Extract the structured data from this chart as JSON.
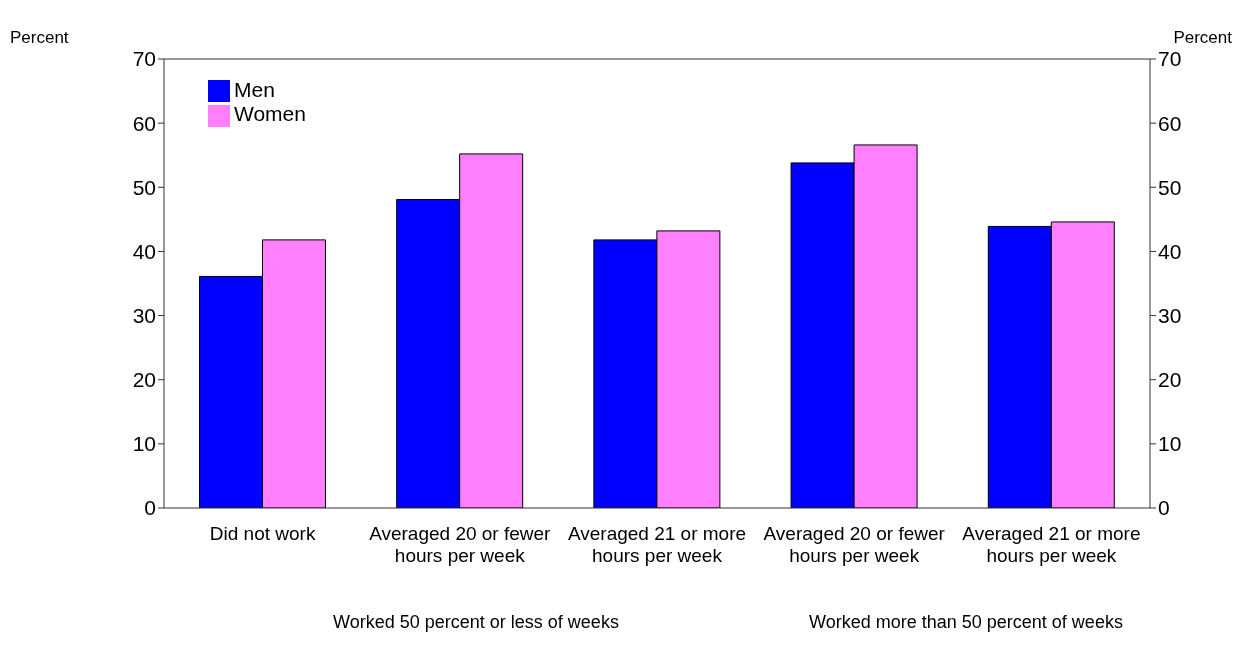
{
  "chart_data": {
    "type": "bar",
    "ylabel": "Percent",
    "y2label": "Percent",
    "categories": [
      "Did not work",
      "Averaged 20 or fewer hours per week",
      "Averaged 21 or more hours per week",
      "Averaged 20 or fewer hours per week",
      "Averaged 21 or more hours per week"
    ],
    "series": [
      {
        "name": "Men",
        "color": "#0000ff",
        "values": [
          36.1,
          48.1,
          41.8,
          53.8,
          43.9
        ]
      },
      {
        "name": "Women",
        "color": "#ff80ff",
        "values": [
          41.8,
          55.2,
          43.2,
          56.6,
          44.6
        ]
      }
    ],
    "ylim": [
      0,
      70
    ],
    "yticks": [
      0,
      10,
      20,
      30,
      40,
      50,
      60,
      70
    ],
    "y2lim": [
      0,
      70
    ],
    "y2ticks": [
      0,
      10,
      20,
      30,
      40,
      50,
      60,
      70
    ],
    "annotations": [
      "Worked 50 percent or less of weeks",
      "Worked more than 50 percent of weeks"
    ],
    "legend": "top left",
    "grid": false
  }
}
